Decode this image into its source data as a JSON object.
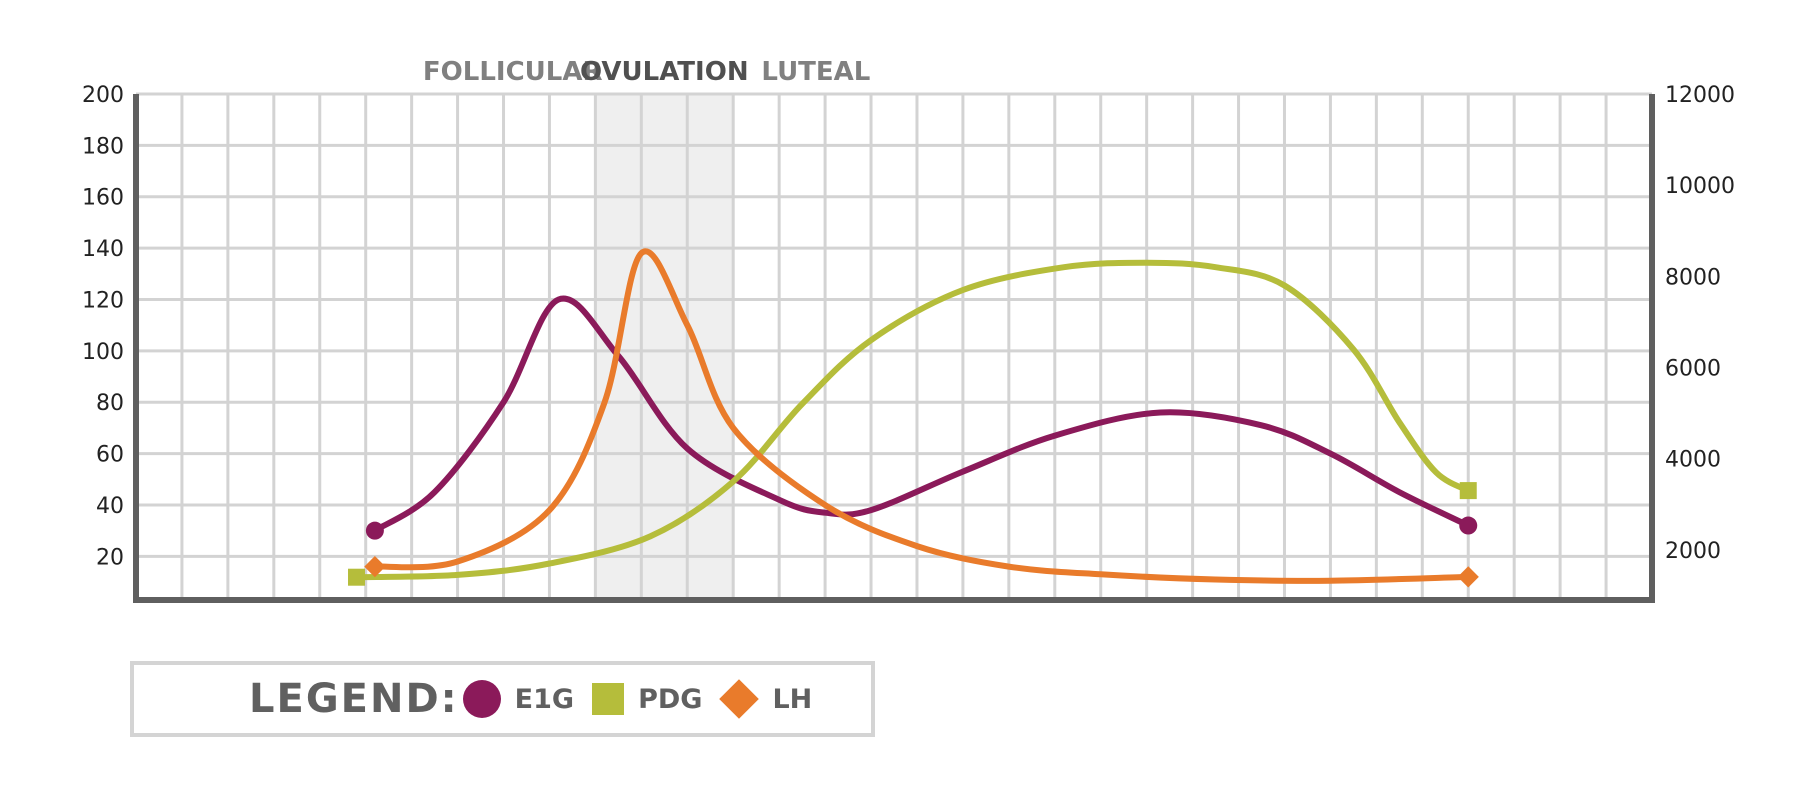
{
  "chart_data": {
    "type": "line",
    "title": "",
    "xlabel": "",
    "ylabel": "",
    "phases": [
      {
        "label": "FOLLICULAR",
        "color": "#808080"
      },
      {
        "label": "OVULATION",
        "color": "#505050",
        "highlight_start": 10,
        "highlight_end": 13
      },
      {
        "label": "LUTEAL",
        "color": "#808080"
      }
    ],
    "x_range": [
      0,
      33
    ],
    "y_left": {
      "ticks": [
        "200",
        "180",
        "160",
        "140",
        "120",
        "100",
        "80",
        "60",
        "40",
        "20"
      ],
      "range": [
        3,
        200
      ]
    },
    "y_right": {
      "ticks": [
        "12000",
        "10000",
        "8000",
        "6000",
        "4000",
        "2000"
      ],
      "range": [
        900,
        12000
      ]
    },
    "grid": true,
    "series": [
      {
        "name": "E1G",
        "color": "#8b1a5a",
        "marker": "circle",
        "axis": "left",
        "points": [
          [
            5.2,
            30
          ],
          [
            6.5,
            45
          ],
          [
            8,
            80
          ],
          [
            9.2,
            120
          ],
          [
            10.5,
            98
          ],
          [
            12,
            62
          ],
          [
            14,
            42
          ],
          [
            15,
            37
          ],
          [
            16,
            38
          ],
          [
            18,
            53
          ],
          [
            20,
            67
          ],
          [
            22.3,
            76
          ],
          [
            24.5,
            71
          ],
          [
            26,
            60
          ],
          [
            27.5,
            45
          ],
          [
            29,
            32
          ]
        ]
      },
      {
        "name": "PDG",
        "color": "#b5bd3b",
        "marker": "square",
        "axis": "right",
        "points": [
          [
            4.8,
            1400
          ],
          [
            7,
            1450
          ],
          [
            9,
            1700
          ],
          [
            11.2,
            2300
          ],
          [
            13,
            3500
          ],
          [
            14.5,
            5200
          ],
          [
            16,
            6600
          ],
          [
            18,
            7700
          ],
          [
            20.2,
            8200
          ],
          [
            22,
            8300
          ],
          [
            23.5,
            8200
          ],
          [
            25,
            7800
          ],
          [
            26.5,
            6400
          ],
          [
            27.5,
            4800
          ],
          [
            28.3,
            3700
          ],
          [
            29,
            3300
          ]
        ]
      },
      {
        "name": "LH",
        "color": "#e97b2b",
        "marker": "diamond",
        "axis": "left",
        "points": [
          [
            5.2,
            16
          ],
          [
            7,
            18
          ],
          [
            9,
            38
          ],
          [
            10.2,
            80
          ],
          [
            11,
            138
          ],
          [
            12,
            110
          ],
          [
            13,
            70
          ],
          [
            15,
            40
          ],
          [
            17,
            24
          ],
          [
            19,
            16
          ],
          [
            21,
            13
          ],
          [
            23.5,
            11
          ],
          [
            26,
            10.5
          ],
          [
            29,
            12
          ]
        ]
      }
    ],
    "legend": {
      "title": "LEGEND:",
      "position": "bottom-left"
    }
  }
}
